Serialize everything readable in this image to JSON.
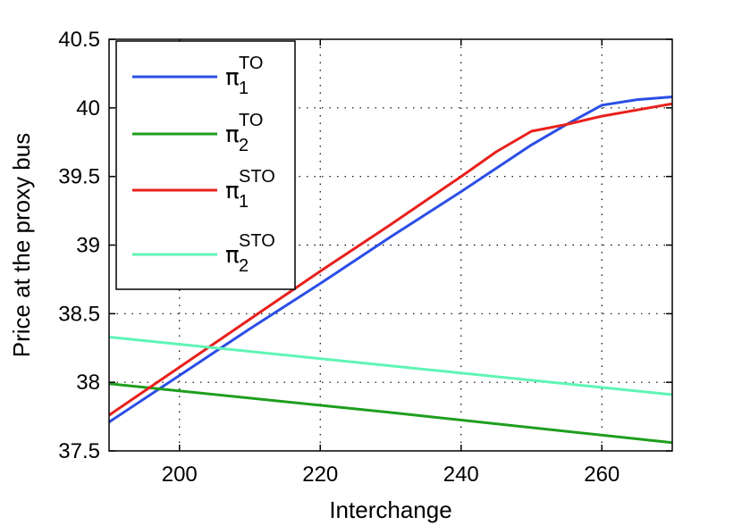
{
  "chart_data": {
    "type": "line",
    "xlabel": "Interchange",
    "ylabel": "Price at the proxy bus",
    "xlim": [
      190,
      270
    ],
    "ylim": [
      37.5,
      40.5
    ],
    "xticks": [
      200,
      220,
      240,
      260
    ],
    "yticks": [
      37.5,
      38,
      38.5,
      39,
      39.5,
      40,
      40.5
    ],
    "xtick_labels": [
      "200",
      "220",
      "240",
      "260"
    ],
    "ytick_labels": [
      "37.5",
      "38",
      "38.5",
      "39",
      "39.5",
      "40",
      "40.5"
    ],
    "grid": true,
    "legend_position": "top-left",
    "series": [
      {
        "name": "π1TO",
        "legend": {
          "base": "π",
          "sub": "1",
          "sup": "TO"
        },
        "color": "#2b4ee6",
        "points": [
          [
            190,
            37.71
          ],
          [
            200,
            38.05
          ],
          [
            210,
            38.39
          ],
          [
            220,
            38.72
          ],
          [
            230,
            39.06
          ],
          [
            240,
            39.39
          ],
          [
            250,
            39.73
          ],
          [
            255,
            39.88
          ],
          [
            260,
            40.02
          ],
          [
            265,
            40.06
          ],
          [
            270,
            40.08
          ]
        ]
      },
      {
        "name": "π2TO",
        "legend": {
          "base": "π",
          "sub": "2",
          "sup": "TO"
        },
        "color": "#1e9e1e",
        "points": [
          [
            190,
            37.99
          ],
          [
            230,
            37.78
          ],
          [
            270,
            37.56
          ]
        ]
      },
      {
        "name": "π1STO",
        "legend": {
          "base": "π",
          "sub": "1",
          "sup": "STO"
        },
        "color": "#e8201c",
        "points": [
          [
            190,
            37.76
          ],
          [
            200,
            38.11
          ],
          [
            210,
            38.46
          ],
          [
            220,
            38.81
          ],
          [
            230,
            39.15
          ],
          [
            240,
            39.5
          ],
          [
            245,
            39.68
          ],
          [
            250,
            39.83
          ],
          [
            255,
            39.88
          ],
          [
            260,
            39.94
          ],
          [
            270,
            40.03
          ]
        ]
      },
      {
        "name": "π2STO",
        "legend": {
          "base": "π",
          "sub": "2",
          "sup": "STO"
        },
        "color": "#5ff5b4",
        "points": [
          [
            190,
            38.33
          ],
          [
            230,
            38.12
          ],
          [
            270,
            37.91
          ]
        ]
      }
    ]
  }
}
